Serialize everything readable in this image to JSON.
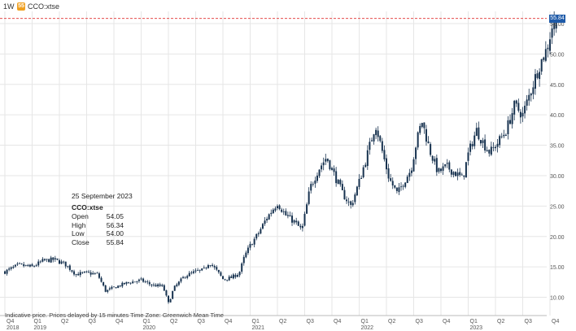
{
  "toolbar": {
    "interval": "1W",
    "symbol_icon_text": "55",
    "symbol": "CCO:xtse"
  },
  "tooltip": {
    "date": "25 September 2023",
    "symbol": "CCO:xtse",
    "rows": [
      {
        "label": "Open",
        "value": "54.05"
      },
      {
        "label": "High",
        "value": "56.34"
      },
      {
        "label": "Low",
        "value": "54.00"
      },
      {
        "label": "Close",
        "value": "55.84"
      }
    ]
  },
  "footer": {
    "note": "Indicative price. Prices delayed by 15 minutes   Time Zone: Greenwich Mean Time"
  },
  "last_price_label": "55.84",
  "colors": {
    "candle": "#17324f",
    "grid": "#e6e6e6",
    "price_line": "#e03030",
    "last_price_badge": "#1e5aa8"
  },
  "chart_data": {
    "type": "candlestick",
    "y_ticks": [
      "10.00",
      "15.00",
      "20.00",
      "25.00",
      "30.00",
      "35.00",
      "40.00",
      "45.00",
      "50.00",
      "55.00"
    ],
    "ylim": [
      7,
      57
    ],
    "y_axis_position": "right",
    "grid": true,
    "price_line": 55.84,
    "quarters": [
      "Q4",
      "Q1",
      "Q2",
      "Q3",
      "Q4",
      "Q1",
      "Q2",
      "Q3",
      "Q4",
      "Q1",
      "Q2",
      "Q3",
      "Q4",
      "Q1",
      "Q2",
      "Q3",
      "Q4",
      "Q1",
      "Q2",
      "Q3",
      "Q4"
    ],
    "years": [
      {
        "label": "2018",
        "quarter_index": 0
      },
      {
        "label": "2019",
        "quarter_index": 1
      },
      {
        "label": "2020",
        "quarter_index": 5
      },
      {
        "label": "2021",
        "quarter_index": 9
      },
      {
        "label": "2022",
        "quarter_index": 13
      },
      {
        "label": "2023",
        "quarter_index": 17
      }
    ],
    "anchors": [
      {
        "q": 0.0,
        "p": 14.2
      },
      {
        "q": 0.5,
        "p": 15.3
      },
      {
        "q": 1.0,
        "p": 15.0
      },
      {
        "q": 1.4,
        "p": 16.0
      },
      {
        "q": 1.8,
        "p": 16.2
      },
      {
        "q": 2.2,
        "p": 15.5
      },
      {
        "q": 2.6,
        "p": 13.8
      },
      {
        "q": 3.0,
        "p": 14.0
      },
      {
        "q": 3.4,
        "p": 13.8
      },
      {
        "q": 3.7,
        "p": 11.0
      },
      {
        "q": 4.0,
        "p": 11.6
      },
      {
        "q": 4.5,
        "p": 12.4
      },
      {
        "q": 5.0,
        "p": 12.8
      },
      {
        "q": 5.4,
        "p": 12.0
      },
      {
        "q": 5.8,
        "p": 11.8
      },
      {
        "q": 6.0,
        "p": 9.0
      },
      {
        "q": 6.2,
        "p": 11.5
      },
      {
        "q": 6.6,
        "p": 13.5
      },
      {
        "q": 7.0,
        "p": 14.2
      },
      {
        "q": 7.3,
        "p": 14.5
      },
      {
        "q": 7.5,
        "p": 15.8
      },
      {
        "q": 7.8,
        "p": 14.2
      },
      {
        "q": 8.0,
        "p": 13.0
      },
      {
        "q": 8.3,
        "p": 13.2
      },
      {
        "q": 8.6,
        "p": 14.0
      },
      {
        "q": 8.8,
        "p": 16.8
      },
      {
        "q": 9.0,
        "p": 18.5
      },
      {
        "q": 9.3,
        "p": 20.5
      },
      {
        "q": 9.6,
        "p": 23.0
      },
      {
        "q": 10.0,
        "p": 25.5
      },
      {
        "q": 10.3,
        "p": 23.5
      },
      {
        "q": 10.6,
        "p": 22.5
      },
      {
        "q": 10.9,
        "p": 21.0
      },
      {
        "q": 11.2,
        "p": 28.0
      },
      {
        "q": 11.5,
        "p": 31.0
      },
      {
        "q": 11.8,
        "p": 33.0
      },
      {
        "q": 12.1,
        "p": 30.0
      },
      {
        "q": 12.4,
        "p": 27.0
      },
      {
        "q": 12.7,
        "p": 25.0
      },
      {
        "q": 13.0,
        "p": 29.0
      },
      {
        "q": 13.3,
        "p": 33.5
      },
      {
        "q": 13.6,
        "p": 38.5
      },
      {
        "q": 13.9,
        "p": 33.0
      },
      {
        "q": 14.1,
        "p": 29.5
      },
      {
        "q": 14.4,
        "p": 27.0
      },
      {
        "q": 14.7,
        "p": 29.5
      },
      {
        "q": 14.9,
        "p": 31.0
      },
      {
        "q": 15.1,
        "p": 35.5
      },
      {
        "q": 15.3,
        "p": 39.0
      },
      {
        "q": 15.6,
        "p": 34.0
      },
      {
        "q": 15.9,
        "p": 30.5
      },
      {
        "q": 16.2,
        "p": 31.5
      },
      {
        "q": 16.5,
        "p": 30.5
      },
      {
        "q": 16.8,
        "p": 29.5
      },
      {
        "q": 17.0,
        "p": 33.5
      },
      {
        "q": 17.3,
        "p": 37.5
      },
      {
        "q": 17.6,
        "p": 35.0
      },
      {
        "q": 17.8,
        "p": 33.8
      },
      {
        "q": 18.1,
        "p": 35.5
      },
      {
        "q": 18.4,
        "p": 37.5
      },
      {
        "q": 18.7,
        "p": 41.5
      },
      {
        "q": 19.0,
        "p": 40.0
      },
      {
        "q": 19.3,
        "p": 44.0
      },
      {
        "q": 19.6,
        "p": 48.0
      },
      {
        "q": 19.9,
        "p": 51.0
      },
      {
        "q": 20.1,
        "p": 55.0
      },
      {
        "q": 20.3,
        "p": 55.8
      }
    ]
  }
}
